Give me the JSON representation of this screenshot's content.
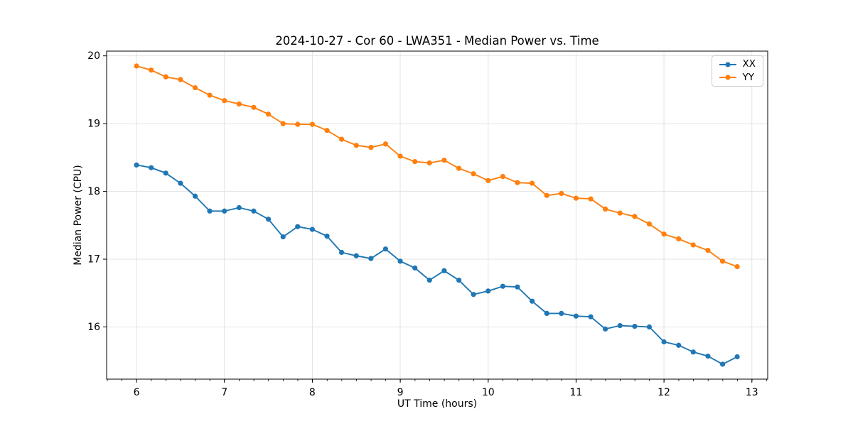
{
  "figure": {
    "title": "2024-10-27 - Cor 60 - LWA351 - Median Power vs. Time",
    "background": "#ffffff"
  },
  "chart_data": {
    "type": "line",
    "title": "2024-10-27 - Cor 60 - LWA351 - Median Power vs. Time",
    "xlabel": "UT Time (hours)",
    "ylabel": "Median Power (CPU)",
    "xlim": [
      5.66,
      13.18
    ],
    "ylim": [
      15.23,
      20.07
    ],
    "x_ticks": [
      6,
      7,
      8,
      9,
      10,
      11,
      12,
      13
    ],
    "y_ticks": [
      16,
      17,
      18,
      19,
      20
    ],
    "x_minor_step": 0.1667,
    "grid": true,
    "legend_position": "upper right",
    "marker": "circle",
    "x": [
      6.0,
      6.167,
      6.333,
      6.5,
      6.667,
      6.833,
      7.0,
      7.167,
      7.333,
      7.5,
      7.667,
      7.833,
      8.0,
      8.167,
      8.333,
      8.5,
      8.667,
      8.833,
      9.0,
      9.167,
      9.333,
      9.5,
      9.667,
      9.833,
      10.0,
      10.167,
      10.333,
      10.5,
      10.667,
      10.833,
      11.0,
      11.167,
      11.333,
      11.5,
      11.667,
      11.833,
      12.0,
      12.167,
      12.333,
      12.5,
      12.667,
      12.833
    ],
    "series": [
      {
        "name": "XX",
        "color": "#1f77b4",
        "values": [
          18.39,
          18.35,
          18.27,
          18.12,
          17.93,
          17.71,
          17.71,
          17.76,
          17.71,
          17.59,
          17.33,
          17.48,
          17.44,
          17.34,
          17.1,
          17.05,
          17.01,
          17.15,
          16.97,
          16.87,
          16.69,
          16.83,
          16.69,
          16.48,
          16.53,
          16.6,
          16.59,
          16.38,
          16.2,
          16.2,
          16.16,
          16.15,
          15.97,
          16.02,
          16.01,
          16.0,
          15.78,
          15.73,
          15.63,
          15.57,
          15.45,
          15.56
        ]
      },
      {
        "name": "YY",
        "color": "#ff7f0e",
        "values": [
          19.85,
          19.79,
          19.69,
          19.65,
          19.53,
          19.42,
          19.34,
          19.29,
          19.24,
          19.14,
          19.0,
          18.99,
          18.99,
          18.9,
          18.77,
          18.68,
          18.65,
          18.7,
          18.52,
          18.44,
          18.42,
          18.46,
          18.34,
          18.26,
          18.16,
          18.22,
          18.13,
          18.12,
          17.94,
          17.97,
          17.9,
          17.89,
          17.74,
          17.68,
          17.63,
          17.52,
          17.37,
          17.3,
          17.21,
          17.13,
          16.97,
          16.89
        ]
      }
    ]
  },
  "colors": {
    "grid": "#e3e3e3",
    "spine": "#000000",
    "tick": "#000000",
    "text": "#000000"
  }
}
